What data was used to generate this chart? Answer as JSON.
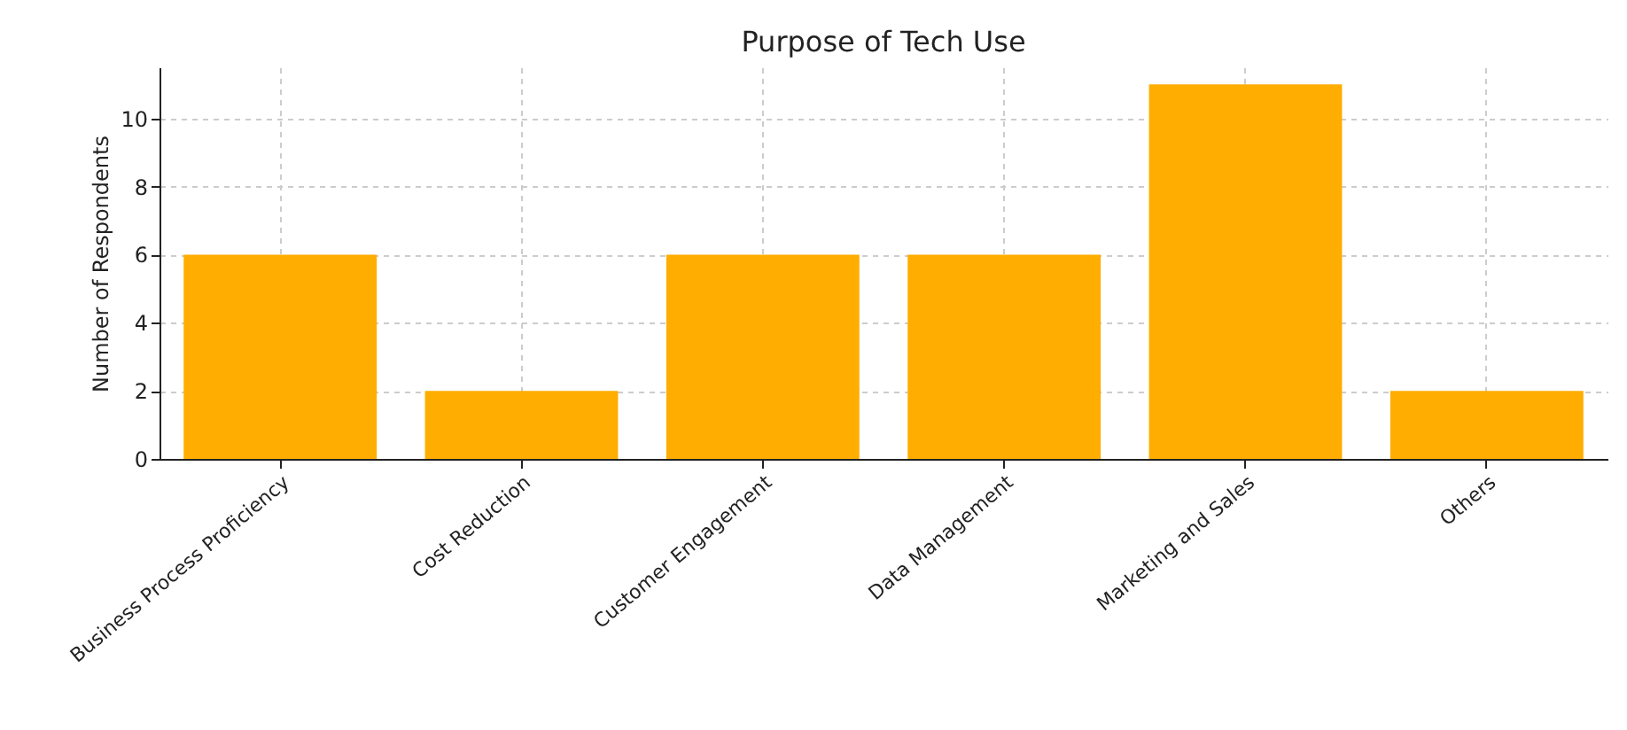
{
  "chart_data": {
    "type": "bar",
    "title": "Purpose of Tech Use",
    "ylabel": "Number of Respondents",
    "categories": [
      "Business Process Proficiency",
      "Cost Reduction",
      "Customer Engagement",
      "Data Management",
      "Marketing and Sales",
      "Others"
    ],
    "values": [
      6,
      2,
      6,
      6,
      11,
      2
    ],
    "color": "#ffad00",
    "ylim": [
      0,
      11.5
    ],
    "yticks": [
      0,
      2,
      4,
      6,
      8,
      10
    ],
    "grid": true
  }
}
